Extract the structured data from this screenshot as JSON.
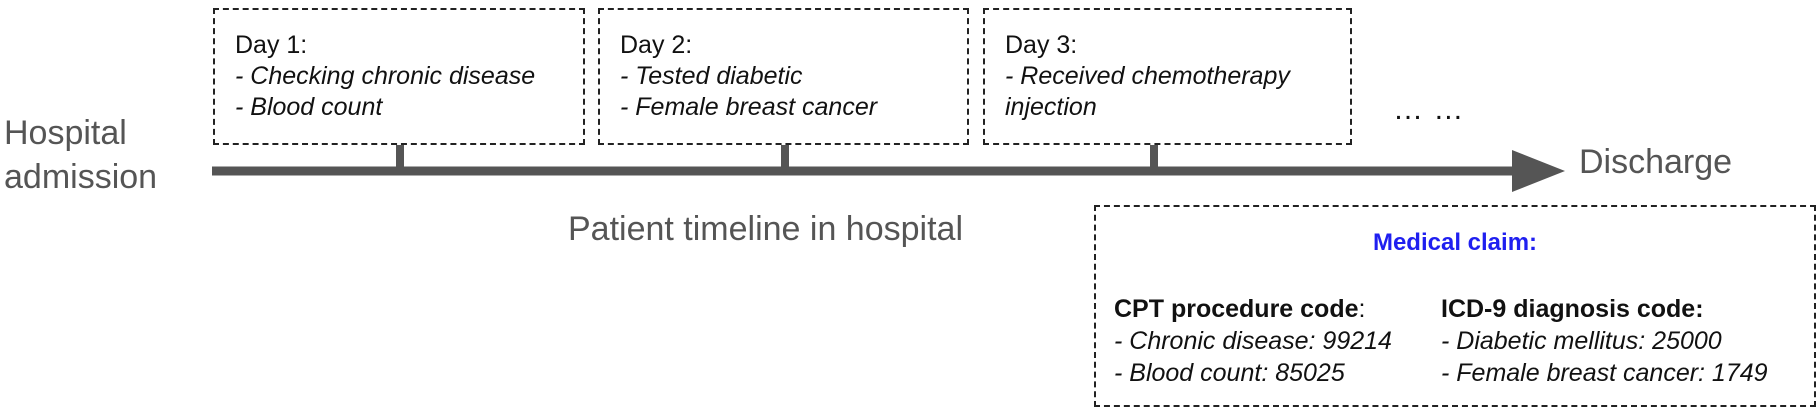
{
  "admission_label": [
    "Hospital",
    "admission"
  ],
  "discharge_label": "Discharge",
  "timeline_caption": "Patient timeline in hospital",
  "ellipsis": "… …",
  "days": [
    {
      "title": "Day 1:",
      "lines": [
        "- Checking chronic disease",
        "- Blood count"
      ]
    },
    {
      "title": "Day 2:",
      "lines": [
        "- Tested diabetic",
        "- Female breast cancer"
      ]
    },
    {
      "title": "Day 3:",
      "lines": [
        "- Received chemotherapy",
        "injection"
      ]
    }
  ],
  "medical_claim": {
    "title": "Medical claim:",
    "cpt": {
      "heading": "CPT procedure code",
      "heading_suffix": ":",
      "lines": [
        "- Chronic disease: 99214",
        "- Blood count: 85025"
      ]
    },
    "icd": {
      "heading": "ICD-9 diagnosis code:",
      "lines": [
        "- Diabetic mellitus: 25000",
        "- Female breast cancer: 1749"
      ]
    }
  },
  "colors": {
    "timeline": "#555555",
    "claim_title": "#1f1ff0",
    "text": "#111111",
    "muted_text": "#555555"
  }
}
